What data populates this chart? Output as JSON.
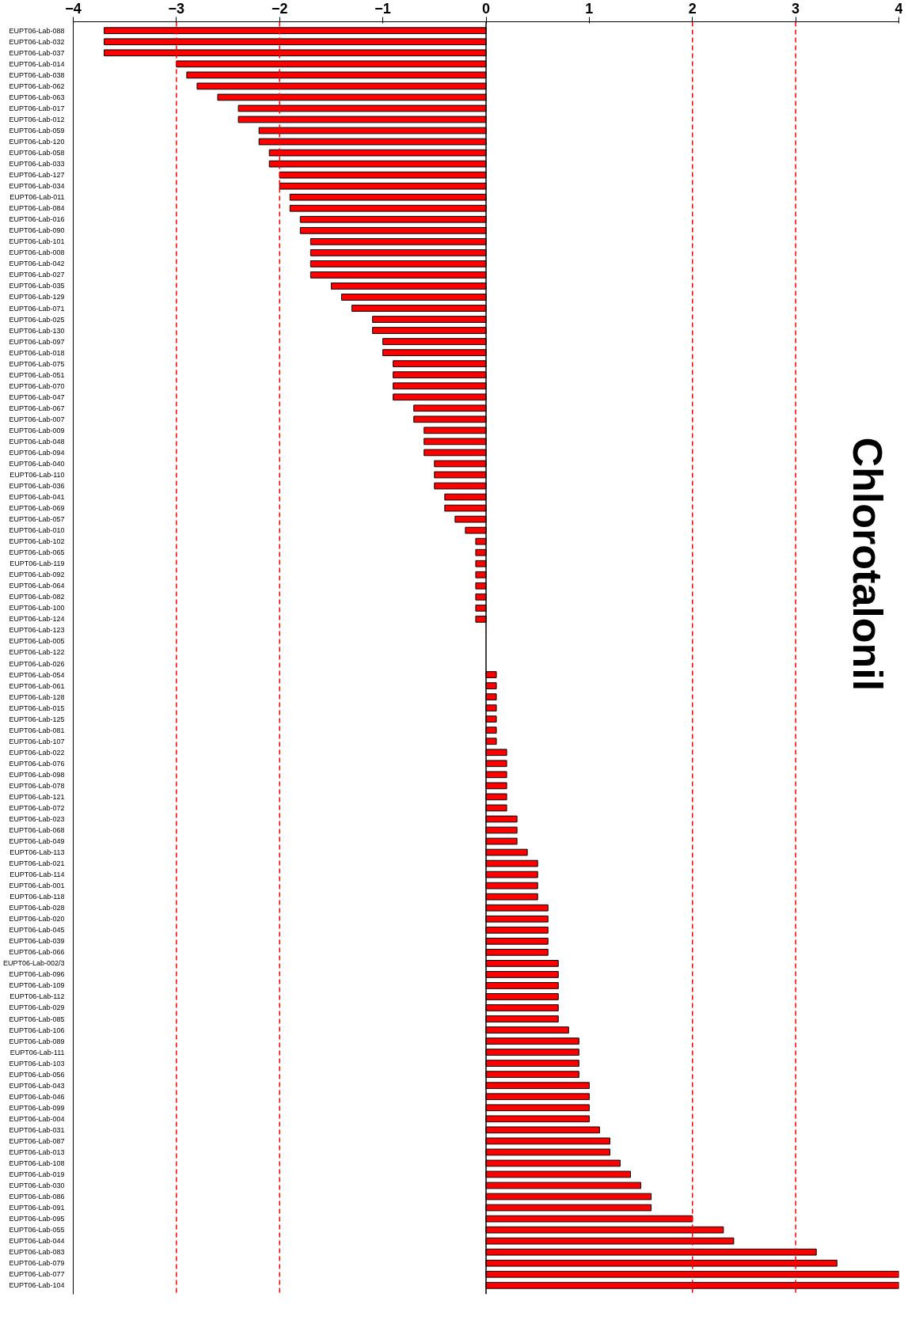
{
  "chart_data": {
    "type": "bar",
    "orientation": "horizontal",
    "title": "Chlorotalonil",
    "categories": [
      "EUPT06-Lab-088",
      "EUPT06-Lab-032",
      "EUPT06-Lab-037",
      "EUPT06-Lab-014",
      "EUPT06-Lab-038",
      "EUPT06-Lab-062",
      "EUPT06-Lab-063",
      "EUPT06-Lab-017",
      "EUPT06-Lab-012",
      "EUPT06-Lab-059",
      "EUPT06-Lab-120",
      "EUPT06-Lab-058",
      "EUPT06-Lab-033",
      "EUPT06-Lab-127",
      "EUPT06-Lab-034",
      "EUPT06-Lab-011",
      "EUPT06-Lab-084",
      "EUPT06-Lab-016",
      "EUPT06-Lab-090",
      "EUPT06-Lab-101",
      "EUPT06-Lab-008",
      "EUPT06-Lab-042",
      "EUPT06-Lab-027",
      "EUPT06-Lab-035",
      "EUPT06-Lab-129",
      "EUPT06-Lab-071",
      "EUPT06-Lab-025",
      "EUPT06-Lab-130",
      "EUPT06-Lab-097",
      "EUPT06-Lab-018",
      "EUPT06-Lab-075",
      "EUPT06-Lab-051",
      "EUPT06-Lab-070",
      "EUPT06-Lab-047",
      "EUPT06-Lab-067",
      "EUPT06-Lab-007",
      "EUPT06-Lab-009",
      "EUPT06-Lab-048",
      "EUPT06-Lab-094",
      "EUPT06-Lab-040",
      "EUPT06-Lab-110",
      "EUPT06-Lab-036",
      "EUPT06-Lab-041",
      "EUPT06-Lab-069",
      "EUPT06-Lab-057",
      "EUPT06-Lab-010",
      "EUPT06-Lab-102",
      "EUPT06-Lab-065",
      "EUPT06-Lab-119",
      "EUPT06-Lab-092",
      "EUPT06-Lab-064",
      "EUPT06-Lab-082",
      "EUPT06-Lab-100",
      "EUPT06-Lab-124",
      "EUPT06-Lab-123",
      "EUPT06-Lab-005",
      "EUPT06-Lab-122",
      "EUPT06-Lab-026",
      "EUPT06-Lab-054",
      "EUPT06-Lab-061",
      "EUPT06-Lab-128",
      "EUPT06-Lab-015",
      "EUPT06-Lab-125",
      "EUPT06-Lab-081",
      "EUPT06-Lab-107",
      "EUPT06-Lab-022",
      "EUPT06-Lab-076",
      "EUPT06-Lab-098",
      "EUPT06-Lab-078",
      "EUPT06-Lab-121",
      "EUPT06-Lab-072",
      "EUPT06-Lab-023",
      "EUPT06-Lab-068",
      "EUPT06-Lab-049",
      "EUPT06-Lab-113",
      "EUPT06-Lab-021",
      "EUPT06-Lab-114",
      "EUPT06-Lab-001",
      "EUPT06-Lab-118",
      "EUPT06-Lab-028",
      "EUPT06-Lab-020",
      "EUPT06-Lab-045",
      "EUPT06-Lab-039",
      "EUPT06-Lab-066",
      "EUPT06-Lab-002/3",
      "EUPT06-Lab-096",
      "EUPT06-Lab-109",
      "EUPT06-Lab-112",
      "EUPT06-Lab-029",
      "EUPT06-Lab-085",
      "EUPT06-Lab-106",
      "EUPT06-Lab-089",
      "EUPT06-Lab-111",
      "EUPT06-Lab-103",
      "EUPT06-Lab-056",
      "EUPT06-Lab-043",
      "EUPT06-Lab-046",
      "EUPT06-Lab-099",
      "EUPT06-Lab-004",
      "EUPT06-Lab-031",
      "EUPT06-Lab-087",
      "EUPT06-Lab-013",
      "EUPT06-Lab-108",
      "EUPT06-Lab-019",
      "EUPT06-Lab-030",
      "EUPT06-Lab-086",
      "EUPT06-Lab-091",
      "EUPT06-Lab-095",
      "EUPT06-Lab-055",
      "EUPT06-Lab-044",
      "EUPT06-Lab-083",
      "EUPT06-Lab-079",
      "EUPT06-Lab-077",
      "EUPT06-Lab-104"
    ],
    "values": [
      -3.7,
      -3.7,
      -3.7,
      -3.0,
      -2.9,
      -2.8,
      -2.6,
      -2.4,
      -2.4,
      -2.2,
      -2.2,
      -2.1,
      -2.1,
      -2.0,
      -2.0,
      -1.9,
      -1.9,
      -1.8,
      -1.8,
      -1.7,
      -1.7,
      -1.7,
      -1.7,
      -1.5,
      -1.4,
      -1.3,
      -1.1,
      -1.1,
      -1.0,
      -1.0,
      -0.9,
      -0.9,
      -0.9,
      -0.9,
      -0.7,
      -0.7,
      -0.6,
      -0.6,
      -0.6,
      -0.5,
      -0.5,
      -0.5,
      -0.4,
      -0.4,
      -0.3,
      -0.2,
      -0.1,
      -0.1,
      -0.1,
      -0.1,
      -0.1,
      -0.1,
      -0.1,
      -0.1,
      0,
      0,
      0,
      0,
      0.1,
      0.1,
      0.1,
      0.1,
      0.1,
      0.1,
      0.1,
      0.2,
      0.2,
      0.2,
      0.2,
      0.2,
      0.2,
      0.3,
      0.3,
      0.3,
      0.4,
      0.5,
      0.5,
      0.5,
      0.5,
      0.6,
      0.6,
      0.6,
      0.6,
      0.6,
      0.7,
      0.7,
      0.7,
      0.7,
      0.7,
      0.7,
      0.8,
      0.9,
      0.9,
      0.9,
      0.9,
      1.0,
      1.0,
      1.0,
      1.0,
      1.1,
      1.2,
      1.2,
      1.3,
      1.4,
      1.5,
      1.6,
      1.6,
      2.0,
      2.3,
      2.4,
      3.2,
      3.4,
      4.0,
      4.0
    ],
    "color": "#ff0000",
    "xlim": [
      -4,
      4
    ],
    "xticks": [
      -4,
      -3,
      -2,
      -1,
      0,
      1,
      2,
      3,
      4
    ],
    "ref_lines": [
      {
        "axis": "x",
        "value": -3,
        "color": "#ff0000",
        "line_style": "dashed"
      },
      {
        "axis": "x",
        "value": -2,
        "color": "#ff0000",
        "line_style": "dashed"
      },
      {
        "axis": "x",
        "value": 2,
        "color": "#ff0000",
        "line_style": "dashed"
      },
      {
        "axis": "x",
        "value": 3,
        "color": "#ff0000",
        "line_style": "dashed"
      }
    ]
  }
}
